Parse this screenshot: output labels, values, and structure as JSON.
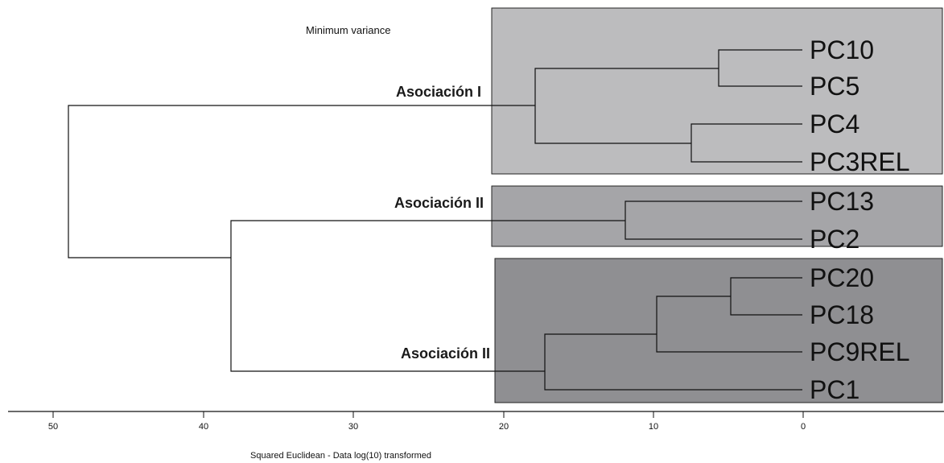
{
  "title": "Minimum variance",
  "axis": {
    "title": "Squared Euclidean - Data log(10) transformed",
    "ticks": [
      "50",
      "40",
      "30",
      "20",
      "10",
      "0"
    ]
  },
  "groups": [
    {
      "label": "Asociación I",
      "fill": "#bcbcbe"
    },
    {
      "label": "Asociación II",
      "fill": "#a5a5a8"
    },
    {
      "label": "Asociación II",
      "fill": "#8f8f92"
    }
  ],
  "leaves": [
    "PC10",
    "PC5",
    "PC4",
    "PC3REL",
    "PC13",
    "PC2",
    "PC20",
    "PC18",
    "PC9REL",
    "PC1"
  ],
  "merges": [
    {
      "a": "PC10",
      "b": "PC5",
      "height": 5.5
    },
    {
      "a": "PC4",
      "b": "PC3REL",
      "height": 7.5
    },
    {
      "a": "PC10+PC5",
      "b": "PC4+PC3REL",
      "height": 18
    },
    {
      "a": "PC13",
      "b": "PC2",
      "height": 12
    },
    {
      "a": "PC20",
      "b": "PC18",
      "height": 4.8
    },
    {
      "a": "PC20+PC18",
      "b": "PC9REL",
      "height": 9.8
    },
    {
      "a": "PC20+PC18+PC9REL",
      "b": "PC1",
      "height": 17.3
    },
    {
      "a": "Asociación II (PC13, PC2)",
      "b": "Asociación II (PC20, PC18, PC9REL, PC1)",
      "height": 38.2
    },
    {
      "a": "Asociación I",
      "b": "Asociación II + Asociación II",
      "height": 49
    }
  ]
}
